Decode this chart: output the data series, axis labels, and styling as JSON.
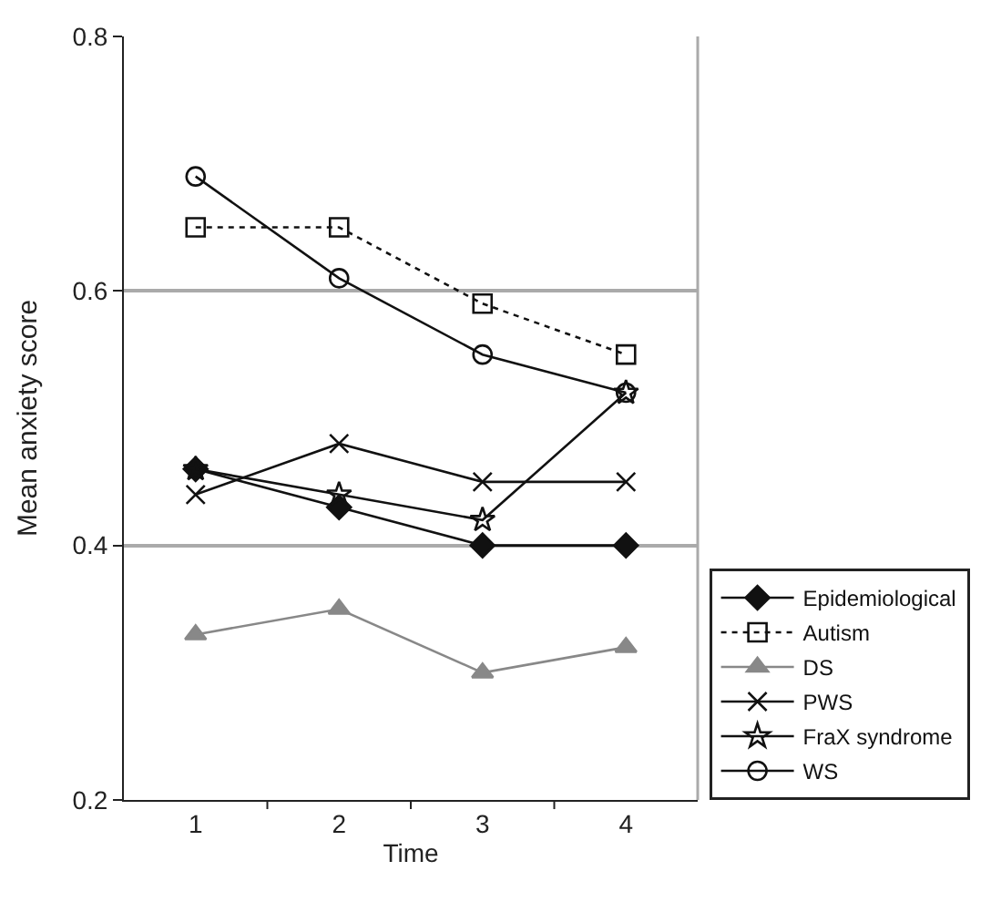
{
  "chart_data": {
    "type": "line",
    "xlabel": "Time",
    "ylabel": "Mean anxiety score",
    "categories": [
      "1",
      "2",
      "3",
      "4"
    ],
    "ylim": [
      0.2,
      0.8
    ],
    "yticks": [
      0.2,
      0.4,
      0.6,
      0.8
    ],
    "grid": "y",
    "legend": "right",
    "series": [
      {
        "name": "Epidemiological",
        "color": "#111111",
        "marker": "diamond",
        "line_style": "solid",
        "values": [
          0.46,
          0.43,
          0.4,
          0.4
        ]
      },
      {
        "name": "Autism",
        "color": "#111111",
        "marker": "square",
        "line_style": "dotted",
        "values": [
          0.65,
          0.65,
          0.59,
          0.55
        ]
      },
      {
        "name": "DS",
        "color": "#888888",
        "marker": "triangle",
        "line_style": "solid",
        "values": [
          0.33,
          0.35,
          0.3,
          0.32
        ]
      },
      {
        "name": "PWS",
        "color": "#111111",
        "marker": "cross",
        "line_style": "solid",
        "values": [
          0.44,
          0.48,
          0.45,
          0.45
        ]
      },
      {
        "name": "FraX syndrome",
        "color": "#111111",
        "marker": "star",
        "line_style": "solid",
        "values": [
          0.46,
          0.44,
          0.42,
          0.52
        ]
      },
      {
        "name": "WS",
        "color": "#111111",
        "marker": "circle",
        "line_style": "solid",
        "values": [
          0.69,
          0.61,
          0.55,
          0.52
        ]
      }
    ]
  }
}
